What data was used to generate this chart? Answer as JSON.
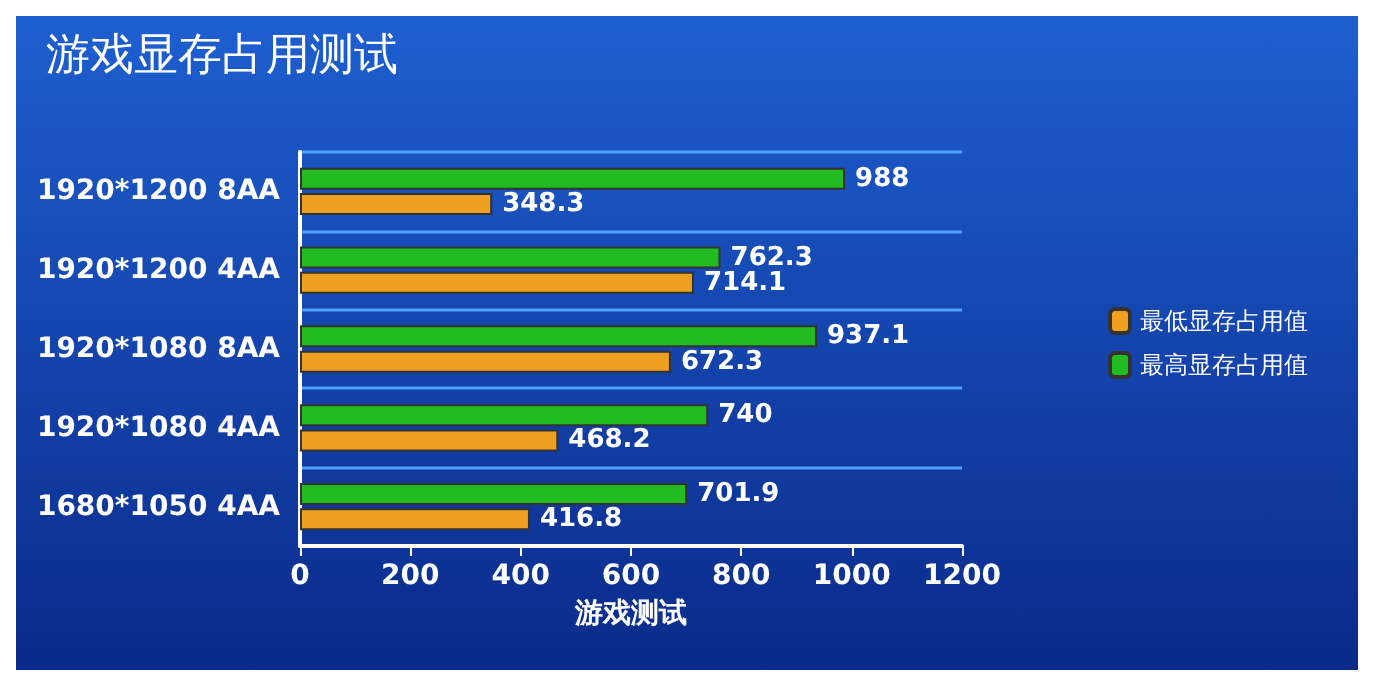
{
  "chart_data": {
    "type": "bar",
    "orientation": "horizontal",
    "title": "游戏显存占用测试",
    "xlabel": "游戏测试",
    "categories": [
      "1920*1200 8AA",
      "1920*1200 4AA",
      "1920*1080 8AA",
      "1920*1080 4AA",
      "1680*1050 4AA"
    ],
    "series": [
      {
        "name": "最低显存占用值",
        "color": "#f0a020",
        "values": [
          348.3,
          714.1,
          672.3,
          468.2,
          416.8
        ]
      },
      {
        "name": "最高显存占用值",
        "color": "#22bb22",
        "values": [
          988,
          762.3,
          937.1,
          740,
          701.9
        ]
      }
    ],
    "xlim": [
      0,
      1200
    ],
    "xticks": [
      0,
      200,
      400,
      600,
      800,
      1000,
      1200
    ],
    "data_labels": true,
    "grid": "y",
    "legend": "right"
  }
}
